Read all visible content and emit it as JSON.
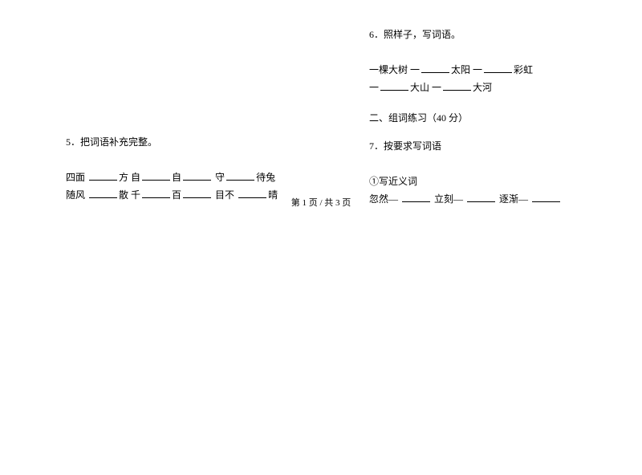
{
  "leftColumn": {
    "q5": {
      "number": "5",
      "title": "．把词语补充完整。",
      "line1_parts": [
        "四面 ",
        "方  自",
        "自",
        "  守",
        "待兔"
      ],
      "line2_parts": [
        "随风 ",
        "散  千",
        "百",
        "  目不 ",
        "晴"
      ]
    }
  },
  "rightColumn": {
    "q6": {
      "number": "6",
      "title": "．照样子，写词语。",
      "line1_parts": [
        "一棵大树    一",
        "太阳        一",
        "彩虹"
      ],
      "line2_parts": [
        "一",
        "大山        一",
        "大河"
      ]
    },
    "section2": "二、组词练习（40 分）",
    "q7": {
      "number": "7",
      "title": "．按要求写词语",
      "subtitle": "①写近义词",
      "line1_parts": [
        "忽然— ",
        "  立刻— ",
        "  逐渐— "
      ]
    }
  },
  "footer": {
    "text": "第 1 页    /   共 3 页"
  },
  "colors": {
    "background": "#ffffff",
    "text": "#000000"
  },
  "fontSize": 12
}
